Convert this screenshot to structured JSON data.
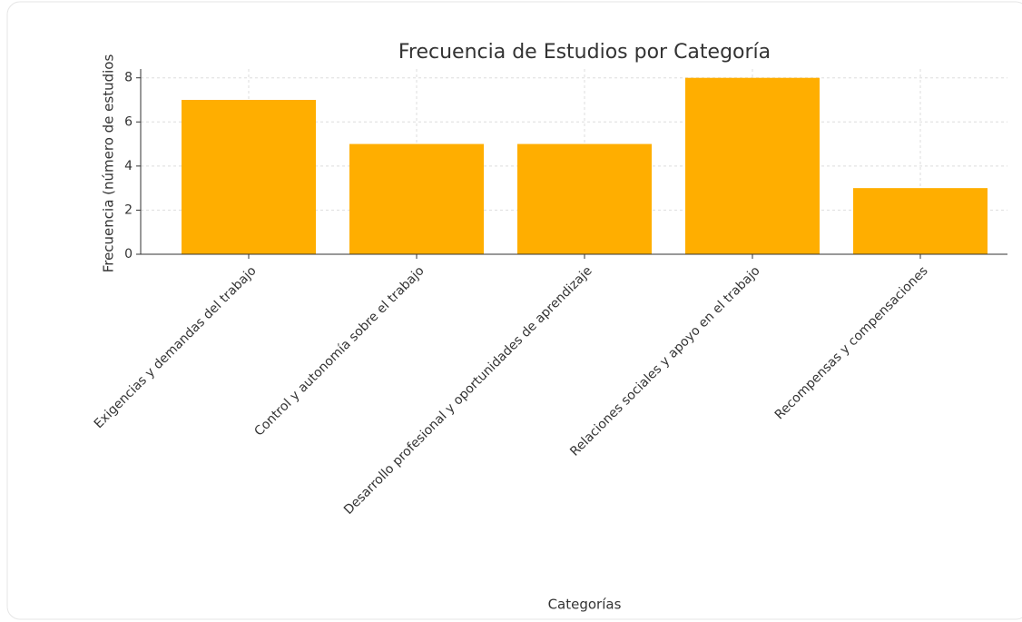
{
  "chart_data": {
    "type": "bar",
    "title": "Frecuencia de Estudios por Categoría",
    "x_label": "Categorías",
    "y_label": "Frecuencia (número de estudios",
    "categories": [
      "Exigencias y demandas del trabajo",
      "Control y autonomía sobre el trabajo",
      "Desarrollo profesional y oportunidades de aprendizaje",
      "Relaciones sociales y apoyo en el trabajo",
      "Recompensas y compensaciones"
    ],
    "values": [
      7,
      5,
      5,
      8,
      3
    ],
    "color": "#ffae00",
    "ylim": [
      0,
      8.4
    ],
    "yticks": [
      0,
      2,
      4,
      6,
      8
    ],
    "grid": true
  }
}
